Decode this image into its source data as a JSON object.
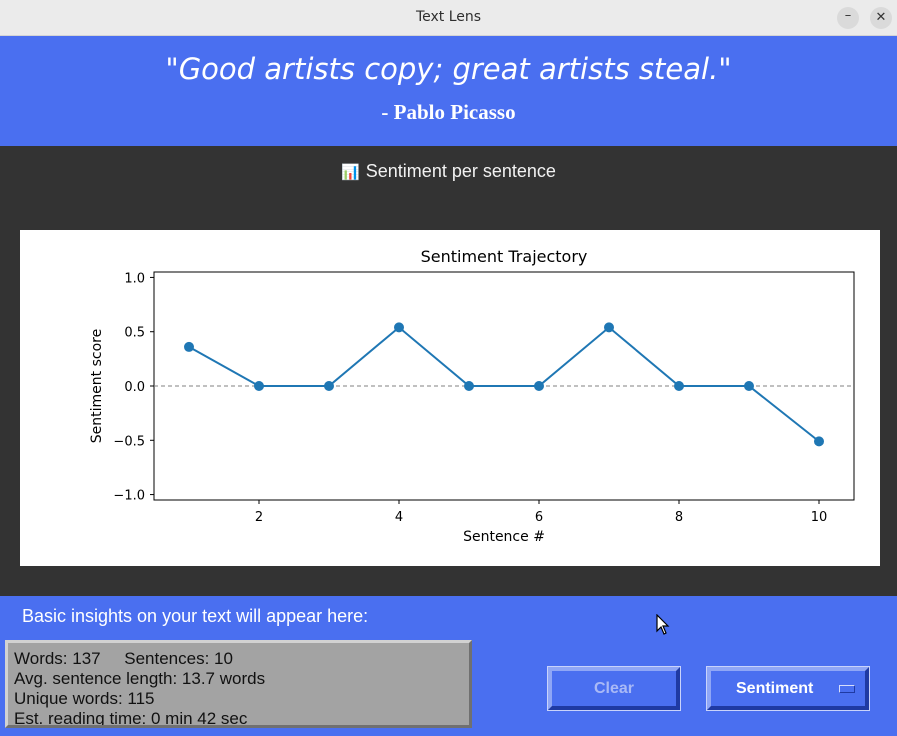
{
  "window": {
    "title": "Text Lens",
    "minimize_glyph": "–",
    "close_glyph": "✕"
  },
  "quote": {
    "text": "\"Good artists copy; great artists steal.\"",
    "author": "-  Pablo Picasso"
  },
  "chart_section": {
    "header_icon": "bar-chart-icon",
    "header_icon_glyph": "📊",
    "header": "Sentiment per sentence"
  },
  "chart_data": {
    "type": "line",
    "title": "Sentiment Trajectory",
    "xlabel": "Sentence #",
    "ylabel": "Sentiment score",
    "x": [
      1,
      2,
      3,
      4,
      5,
      6,
      7,
      8,
      9,
      10
    ],
    "series": [
      {
        "name": "Sentiment",
        "values": [
          0.36,
          0.0,
          0.0,
          0.54,
          0.0,
          0.0,
          0.54,
          0.0,
          0.0,
          -0.51
        ]
      }
    ],
    "xlim": [
      0.5,
      10.5
    ],
    "ylim": [
      -1.05,
      1.05
    ],
    "xticks": [
      2,
      4,
      6,
      8,
      10
    ],
    "yticks": [
      1.0,
      0.5,
      0.0,
      -0.5,
      -1.0
    ],
    "ytick_labels": [
      "1.0",
      "0.5",
      "0.0",
      "−0.5",
      "−1.0"
    ],
    "reference_line": {
      "y": 0.0,
      "style": "dashed"
    },
    "line_color": "#1f77b4",
    "grid": false
  },
  "insights": {
    "label": "Basic insights on your text will appear here:",
    "lines": [
      "Words: 137     Sentences: 10",
      "Avg. sentence length: 13.7 words",
      "Unique words: 115",
      "Est. reading time: 0 min 42 sec"
    ]
  },
  "buttons": {
    "clear_label": "Clear",
    "sentiment_label": "Sentiment"
  },
  "colors": {
    "accent": "#4a6ff0",
    "dark_panel": "#333333",
    "stats_bg": "#a3a3a3",
    "titlebar": "#ebebeb"
  }
}
